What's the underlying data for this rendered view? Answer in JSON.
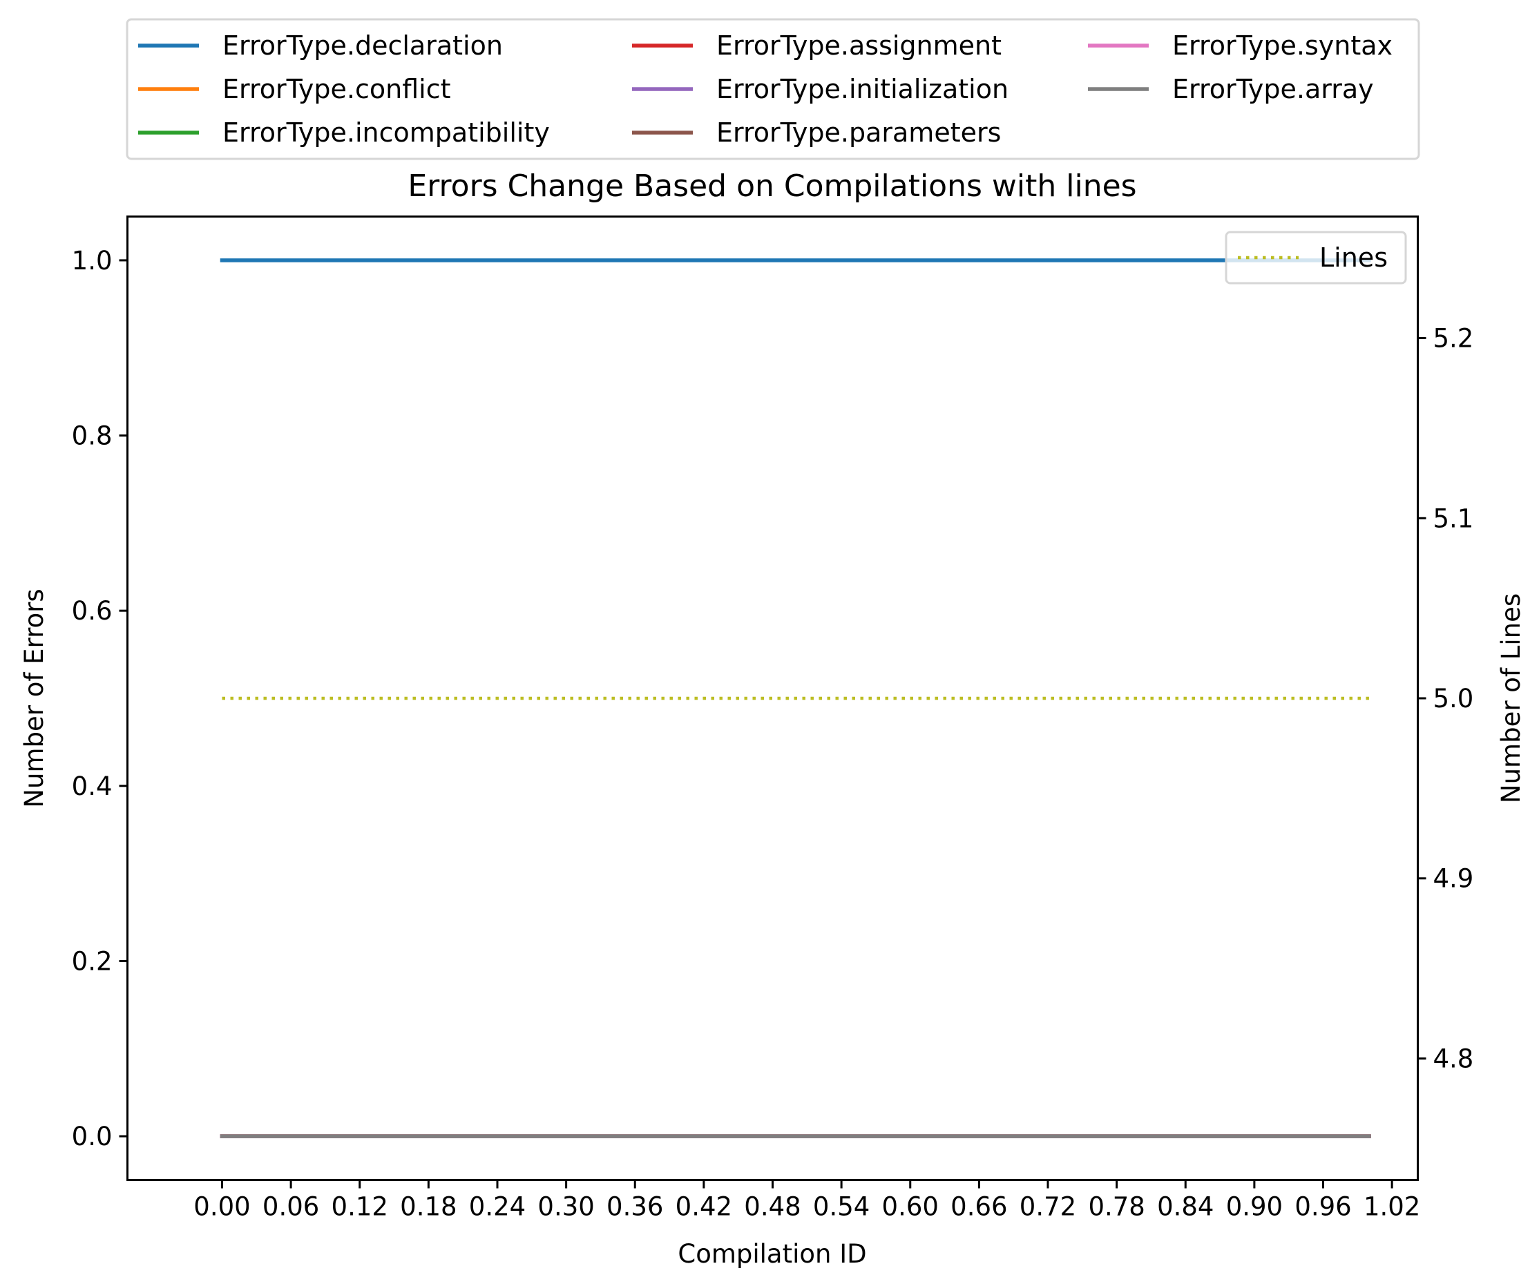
{
  "chart_data": {
    "type": "line",
    "title": "Errors Change Based on Compilations with lines",
    "xlabel": "Compilation ID",
    "ylabel": "Number of Errors",
    "y2label": "Number of Lines",
    "xlim": [
      -0.0825,
      1.0425
    ],
    "ylim": [
      -0.05,
      1.05
    ],
    "y2lim": [
      4.7325,
      5.2675
    ],
    "xticks": [
      0.0,
      0.06,
      0.12,
      0.18,
      0.24,
      0.3,
      0.36,
      0.42,
      0.48,
      0.54,
      0.6,
      0.66,
      0.72,
      0.78,
      0.84,
      0.9,
      0.96,
      1.02
    ],
    "xtick_labels": [
      "0.00",
      "0.06",
      "0.12",
      "0.18",
      "0.24",
      "0.30",
      "0.36",
      "0.42",
      "0.48",
      "0.54",
      "0.60",
      "0.66",
      "0.72",
      "0.78",
      "0.84",
      "0.90",
      "0.96",
      "1.02"
    ],
    "yticks": [
      0.0,
      0.2,
      0.4,
      0.6,
      0.8,
      1.0
    ],
    "ytick_labels": [
      "0.0",
      "0.2",
      "0.4",
      "0.6",
      "0.8",
      "1.0"
    ],
    "y2ticks": [
      4.8,
      4.9,
      5.0,
      5.1,
      5.2
    ],
    "y2tick_labels": [
      "4.8",
      "4.9",
      "5.0",
      "5.1",
      "5.2"
    ],
    "x": [
      0,
      1
    ],
    "series": [
      {
        "name": "ErrorType.declaration",
        "color": "#1f77b4",
        "values": [
          1,
          1
        ]
      },
      {
        "name": "ErrorType.conflict",
        "color": "#ff7f0e",
        "values": [
          0,
          0
        ]
      },
      {
        "name": "ErrorType.incompatibility",
        "color": "#2ca02c",
        "values": [
          0,
          0
        ]
      },
      {
        "name": "ErrorType.assignment",
        "color": "#d62728",
        "values": [
          0,
          0
        ]
      },
      {
        "name": "ErrorType.initialization",
        "color": "#9467bd",
        "values": [
          0,
          0
        ]
      },
      {
        "name": "ErrorType.parameters",
        "color": "#8c564b",
        "values": [
          0,
          0
        ]
      },
      {
        "name": "ErrorType.syntax",
        "color": "#e377c2",
        "values": [
          0,
          0
        ]
      },
      {
        "name": "ErrorType.array",
        "color": "#7f7f7f",
        "values": [
          0,
          0
        ]
      }
    ],
    "secondary_series": [
      {
        "name": "Lines",
        "color": "#bcbd22",
        "style": "dotted",
        "values": [
          5,
          5
        ]
      }
    ],
    "legend_placement": "above plot, 3 columns",
    "secondary_legend_placement": "top-right",
    "grid": false
  }
}
